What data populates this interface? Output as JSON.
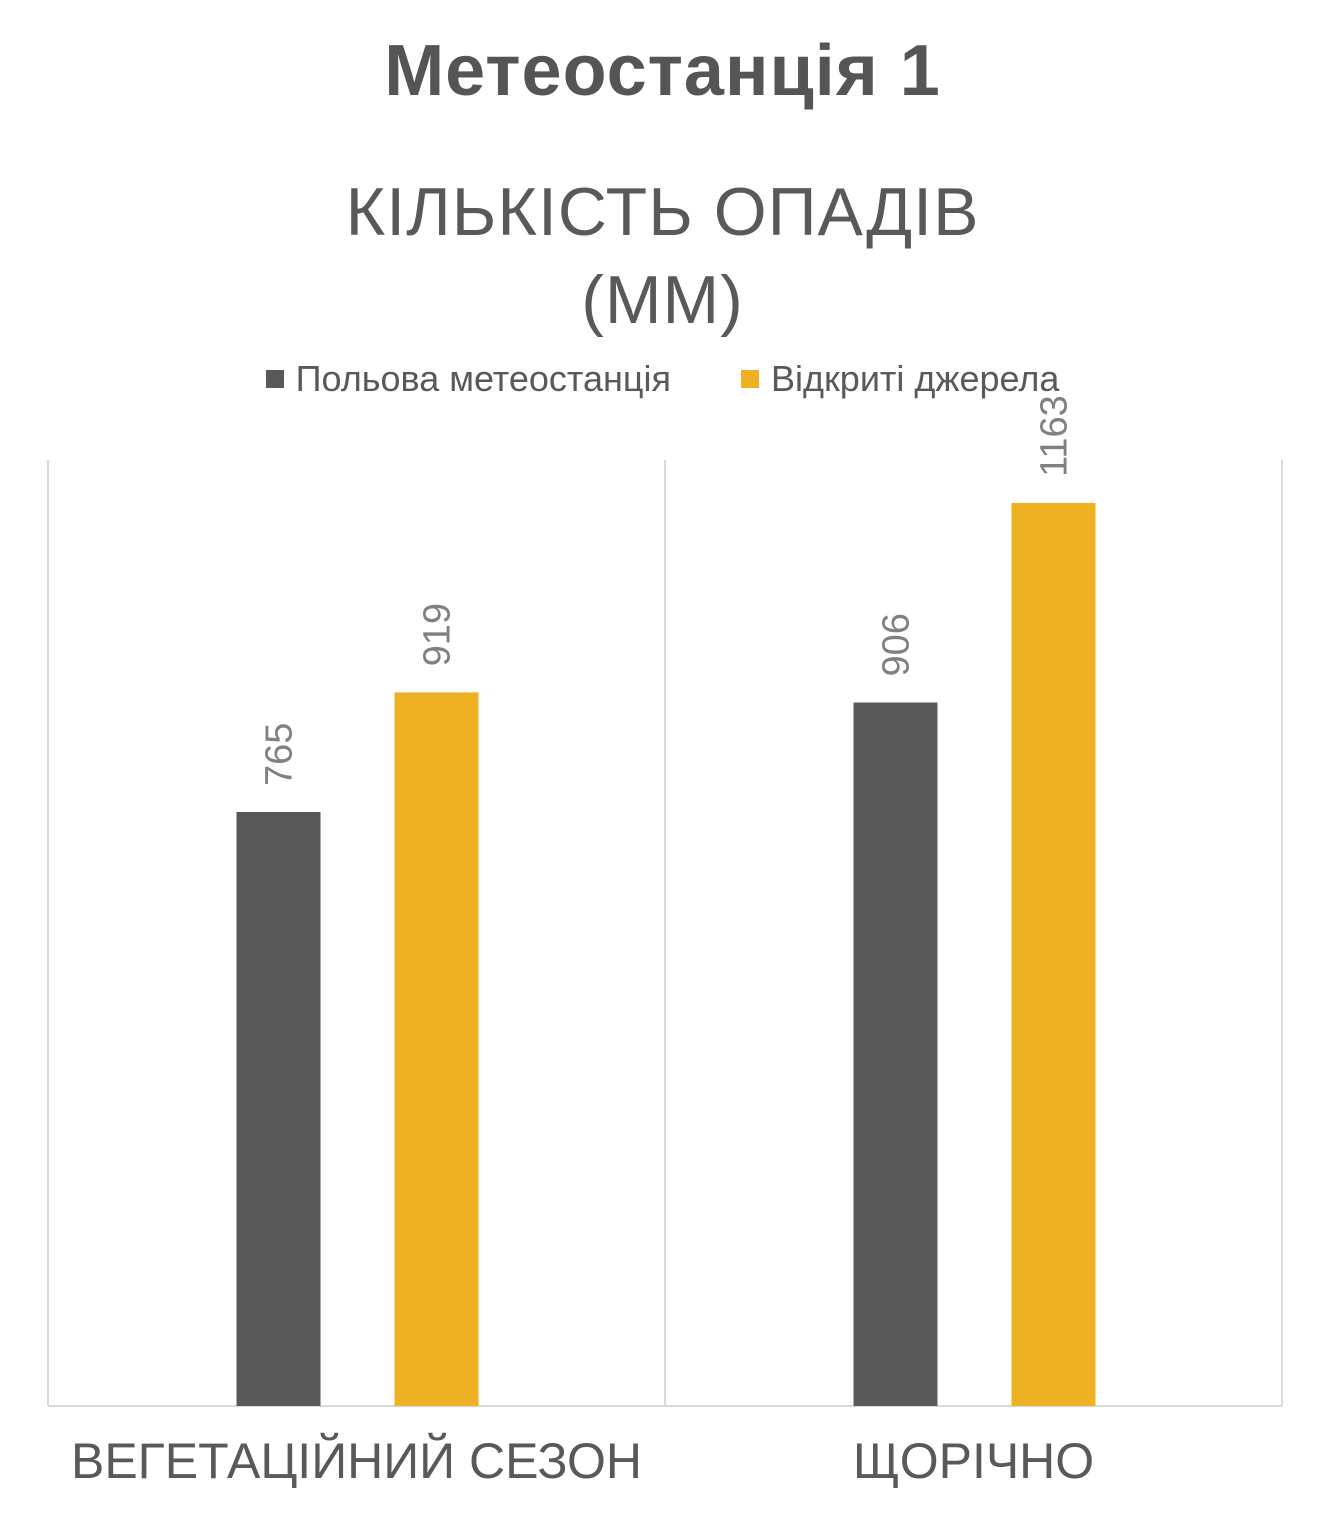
{
  "header": {
    "title": "Метеостанція 1"
  },
  "chart_data": {
    "type": "bar",
    "title_lines": [
      "КІЛЬКІСТЬ ОПАДІВ",
      "(ММ)"
    ],
    "categories": [
      "ВЕГЕТАЦІЙНИЙ СЕЗОН",
      "ЩОРІЧНО"
    ],
    "series": [
      {
        "name": "Польова метеостанція",
        "color": "#595959",
        "values": [
          765,
          906
        ]
      },
      {
        "name": "Відкриті джерела",
        "color": "#EDB123",
        "values": [
          919,
          1163
        ]
      }
    ],
    "ylim": [
      0,
      1500
    ],
    "grid": false,
    "legend_position": "top",
    "data_labels": true,
    "xlabel": "",
    "ylabel": ""
  }
}
